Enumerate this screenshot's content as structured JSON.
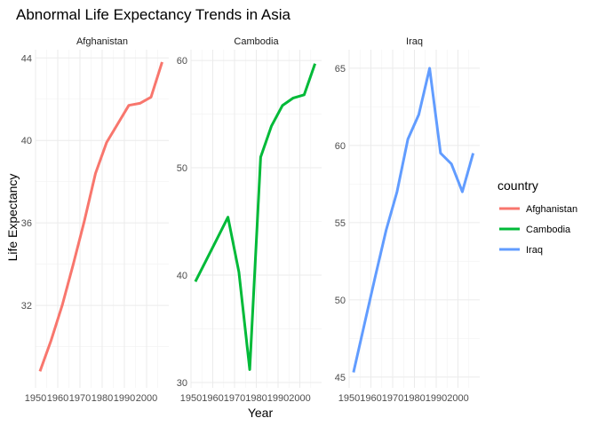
{
  "chart_data": {
    "type": "line",
    "title": "Abnormal Life Expectancy Trends in Asia",
    "xlabel": "Year",
    "ylabel": "Life Expectancy",
    "legend_title": "country",
    "legend_position": "right",
    "grid": true,
    "xlim": [
      1950,
      2010
    ],
    "x_ticks": [
      1950,
      1960,
      1970,
      1980,
      1990,
      2000
    ],
    "x_tick_labels": [
      "1950",
      "1960",
      "1970",
      "1980",
      "1990",
      "2000"
    ],
    "x": [
      1952,
      1957,
      1962,
      1967,
      1972,
      1977,
      1982,
      1987,
      1992,
      1997,
      2002,
      2007
    ],
    "series": [
      {
        "name": "Afghanistan",
        "color": "#F8766D",
        "values": [
          28.8,
          30.3,
          32.0,
          34.0,
          36.1,
          38.4,
          39.9,
          40.8,
          41.7,
          41.8,
          42.1,
          43.8
        ],
        "ylim": [
          28.0,
          44.4
        ],
        "y_ticks": [
          32,
          36,
          40,
          44
        ],
        "y_tick_labels": [
          "32",
          "36",
          "40",
          "44"
        ]
      },
      {
        "name": "Cambodia",
        "color": "#00BA38",
        "values": [
          39.4,
          41.4,
          43.4,
          45.4,
          40.3,
          31.2,
          51.0,
          53.9,
          55.8,
          56.5,
          56.8,
          59.7
        ],
        "ylim": [
          29.5,
          61.0
        ],
        "y_ticks": [
          30,
          40,
          50,
          60
        ],
        "y_tick_labels": [
          "30",
          "40",
          "50",
          "60"
        ]
      },
      {
        "name": "Iraq",
        "color": "#619CFF",
        "values": [
          45.3,
          48.4,
          51.5,
          54.5,
          57.0,
          60.4,
          62.0,
          65.0,
          59.5,
          58.8,
          57.0,
          59.5
        ],
        "ylim": [
          44.3,
          66.2
        ],
        "y_ticks": [
          45,
          50,
          55,
          60,
          65
        ],
        "y_tick_labels": [
          "45",
          "50",
          "55",
          "60",
          "65"
        ]
      }
    ]
  }
}
